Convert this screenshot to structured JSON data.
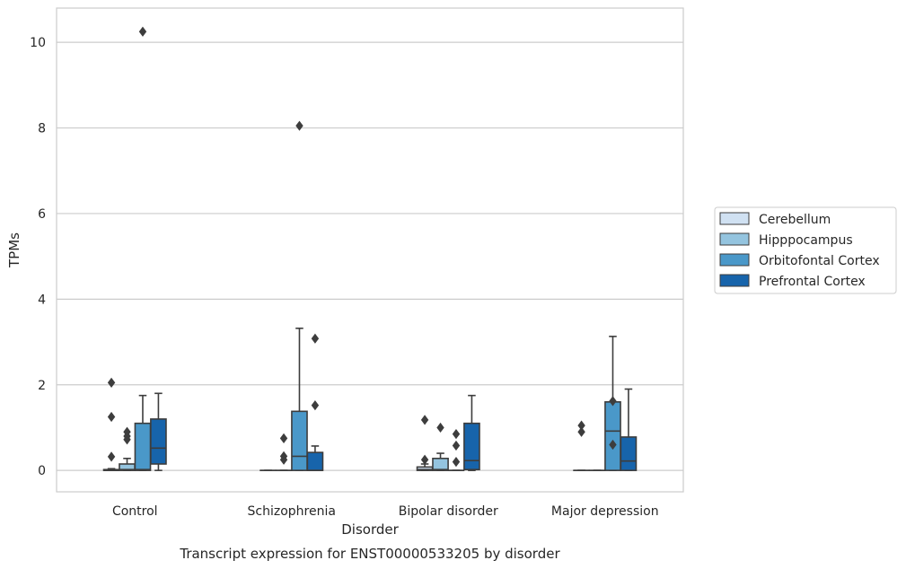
{
  "chart_data": {
    "type": "box",
    "title": "",
    "caption": "Transcript expression for ENST00000533205 by disorder",
    "xlabel": "Disorder",
    "ylabel": "TPMs",
    "ylim": [
      -0.5,
      10.8
    ],
    "yticks": [
      0,
      2,
      4,
      6,
      8,
      10
    ],
    "grid": "horizontal",
    "legend_position": "right",
    "categories": [
      "Control",
      "Schizophrenia",
      "Bipolar disorder",
      "Major depression"
    ],
    "series": [
      {
        "name": "Cerebellum",
        "color": "#d0e1f2",
        "boxes": [
          {
            "min": 0,
            "q1": 0,
            "median": 0,
            "q3": 0.02,
            "max": 0.04,
            "outliers": [
              2.05,
              1.25,
              0.32
            ]
          },
          {
            "min": 0,
            "q1": 0,
            "median": 0,
            "q3": 0,
            "max": 0,
            "outliers": []
          },
          {
            "min": 0,
            "q1": 0,
            "median": 0.02,
            "q3": 0.08,
            "max": 0.15,
            "outliers": [
              1.18,
              0.25
            ]
          },
          {
            "min": 0,
            "q1": 0,
            "median": 0,
            "q3": 0,
            "max": 0,
            "outliers": [
              1.05,
              0.9
            ]
          }
        ]
      },
      {
        "name": "Hipppocampus",
        "color": "#94c4df",
        "boxes": [
          {
            "min": 0,
            "q1": 0,
            "median": 0.02,
            "q3": 0.15,
            "max": 0.28,
            "outliers": [
              0.9,
              0.8,
              0.72
            ]
          },
          {
            "min": 0,
            "q1": 0,
            "median": 0,
            "q3": 0,
            "max": 0,
            "outliers": [
              0.75,
              0.33,
              0.25
            ]
          },
          {
            "min": 0,
            "q1": 0,
            "median": 0.02,
            "q3": 0.28,
            "max": 0.4,
            "outliers": [
              1.0
            ]
          },
          {
            "min": 0,
            "q1": 0,
            "median": 0,
            "q3": 0,
            "max": 0,
            "outliers": []
          }
        ]
      },
      {
        "name": "Orbitofontal Cortex",
        "color": "#4a98c9",
        "boxes": [
          {
            "min": 0,
            "q1": 0,
            "median": 0.02,
            "q3": 1.1,
            "max": 1.75,
            "outliers": [
              10.25
            ]
          },
          {
            "min": 0,
            "q1": 0,
            "median": 0.33,
            "q3": 1.38,
            "max": 3.32,
            "outliers": [
              8.05
            ]
          },
          {
            "min": 0,
            "q1": 0,
            "median": 0,
            "q3": 0,
            "max": 0,
            "outliers": [
              0.85,
              0.58,
              0.2
            ]
          },
          {
            "min": 0,
            "q1": 0,
            "median": 0.92,
            "q3": 1.6,
            "max": 3.13,
            "outliers": [
              1.62,
              0.6
            ]
          }
        ]
      },
      {
        "name": "Prefrontal Cortex",
        "color": "#1764ab",
        "boxes": [
          {
            "min": 0,
            "q1": 0.15,
            "median": 0.52,
            "q3": 1.2,
            "max": 1.8,
            "outliers": []
          },
          {
            "min": 0,
            "q1": 0,
            "median": 0,
            "q3": 0.42,
            "max": 0.57,
            "outliers": [
              3.08,
              1.52
            ]
          },
          {
            "min": 0,
            "q1": 0.02,
            "median": 0.23,
            "q3": 1.1,
            "max": 1.75,
            "outliers": []
          },
          {
            "min": 0,
            "q1": 0,
            "median": 0.22,
            "q3": 0.78,
            "max": 1.9,
            "outliers": []
          }
        ]
      }
    ]
  }
}
